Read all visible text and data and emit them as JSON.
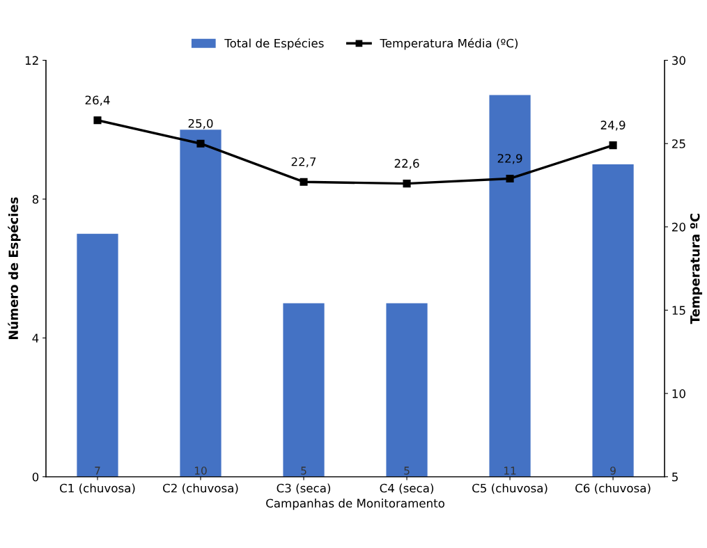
{
  "chart_data": {
    "type": "bar",
    "categories": [
      "C1 (chuvosa)",
      "C2 (chuvosa)",
      "C3 (seca)",
      "C4 (seca)",
      "C5 (chuvosa)",
      "C6 (chuvosa)"
    ],
    "series": [
      {
        "name": "Total de Espécies",
        "color": "#4472c4",
        "values": [
          7,
          10,
          5,
          5,
          11,
          9
        ],
        "value_labels": [
          "7",
          "10",
          "5",
          "5",
          "11",
          "9"
        ]
      },
      {
        "name": "Temperatura Média (ºC)",
        "type": "line",
        "axis": "y2",
        "color": "#000000",
        "marker": "square",
        "values": [
          26.4,
          25.0,
          22.7,
          22.6,
          22.9,
          24.9
        ],
        "value_labels": [
          "26,4",
          "25,0",
          "22,7",
          "22,6",
          "22,9",
          "24,9"
        ]
      }
    ],
    "xlabel": "Campanhas de Monitoramento",
    "ylabel": "Número de Espécies",
    "y2label": "Temperatura ºC",
    "ylim": [
      0,
      12
    ],
    "yticks": [
      0,
      4,
      8,
      12
    ],
    "y2lim": [
      5,
      30
    ],
    "y2ticks": [
      5,
      10,
      15,
      20,
      25,
      30
    ],
    "legend": "top",
    "grid": false
  }
}
